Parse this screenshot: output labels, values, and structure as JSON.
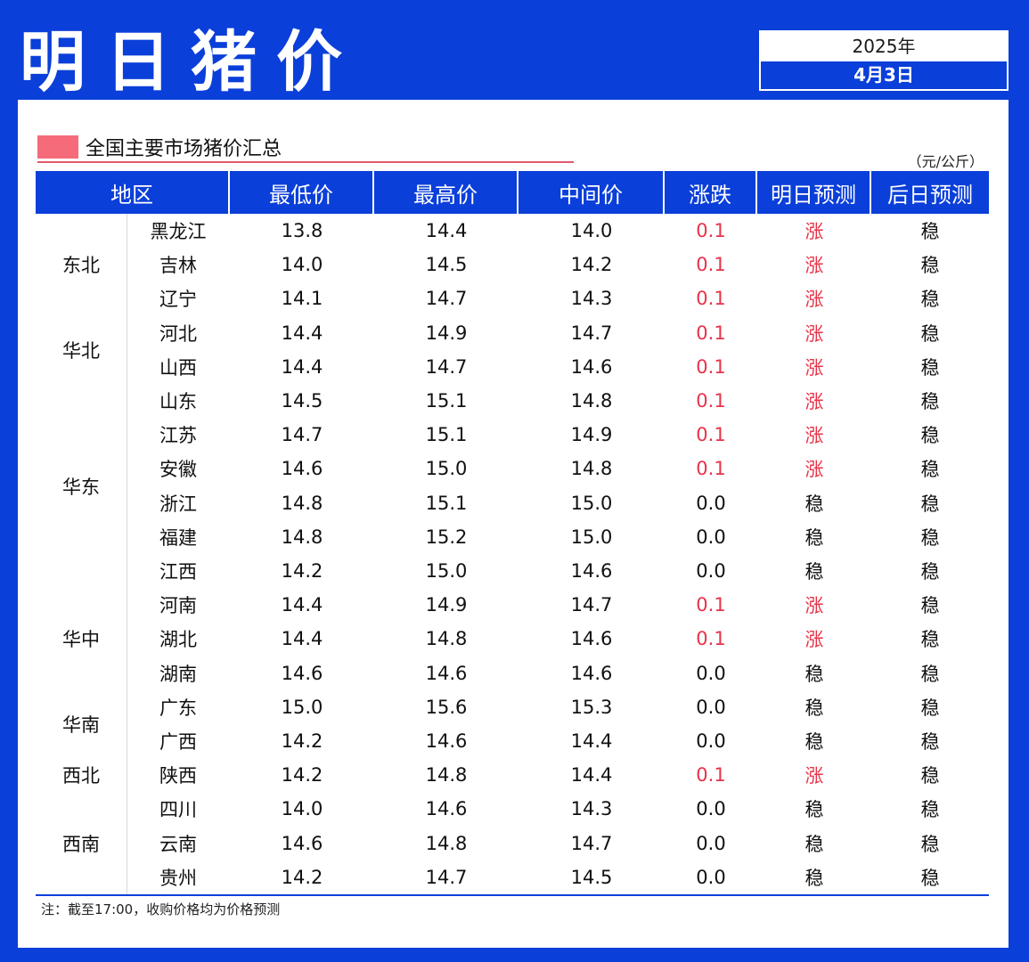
{
  "header": {
    "title": "明日猪价",
    "year": "2025年",
    "date": "4月3日"
  },
  "section": {
    "title": "全国主要市场猪价汇总",
    "unit": "（元/公斤）"
  },
  "colors": {
    "brand_blue": "#0b3fd9",
    "accent_pink": "#f56b7a",
    "up_red": "#e8334a"
  },
  "table": {
    "headers": [
      "地区",
      "最低价",
      "最高价",
      "中间价",
      "涨跌",
      "明日预测",
      "后日预测"
    ],
    "regions": [
      {
        "name": "东北",
        "rows": 3
      },
      {
        "name": "华北",
        "rows": 2
      },
      {
        "name": "华东",
        "rows": 6
      },
      {
        "name": "华中",
        "rows": 3
      },
      {
        "name": "华南",
        "rows": 2
      },
      {
        "name": "西北",
        "rows": 1
      },
      {
        "name": "西南",
        "rows": 3
      }
    ],
    "rows": [
      {
        "province": "黑龙江",
        "low": "13.8",
        "high": "14.4",
        "mid": "14.0",
        "change": "0.1",
        "tomorrow": "涨",
        "after": "稳",
        "up": true
      },
      {
        "province": "吉林",
        "low": "14.0",
        "high": "14.5",
        "mid": "14.2",
        "change": "0.1",
        "tomorrow": "涨",
        "after": "稳",
        "up": true
      },
      {
        "province": "辽宁",
        "low": "14.1",
        "high": "14.7",
        "mid": "14.3",
        "change": "0.1",
        "tomorrow": "涨",
        "after": "稳",
        "up": true
      },
      {
        "province": "河北",
        "low": "14.4",
        "high": "14.9",
        "mid": "14.7",
        "change": "0.1",
        "tomorrow": "涨",
        "after": "稳",
        "up": true
      },
      {
        "province": "山西",
        "low": "14.4",
        "high": "14.7",
        "mid": "14.6",
        "change": "0.1",
        "tomorrow": "涨",
        "after": "稳",
        "up": true
      },
      {
        "province": "山东",
        "low": "14.5",
        "high": "15.1",
        "mid": "14.8",
        "change": "0.1",
        "tomorrow": "涨",
        "after": "稳",
        "up": true
      },
      {
        "province": "江苏",
        "low": "14.7",
        "high": "15.1",
        "mid": "14.9",
        "change": "0.1",
        "tomorrow": "涨",
        "after": "稳",
        "up": true
      },
      {
        "province": "安徽",
        "low": "14.6",
        "high": "15.0",
        "mid": "14.8",
        "change": "0.1",
        "tomorrow": "涨",
        "after": "稳",
        "up": true
      },
      {
        "province": "浙江",
        "low": "14.8",
        "high": "15.1",
        "mid": "15.0",
        "change": "0.0",
        "tomorrow": "稳",
        "after": "稳",
        "up": false
      },
      {
        "province": "福建",
        "low": "14.8",
        "high": "15.2",
        "mid": "15.0",
        "change": "0.0",
        "tomorrow": "稳",
        "after": "稳",
        "up": false
      },
      {
        "province": "江西",
        "low": "14.2",
        "high": "15.0",
        "mid": "14.6",
        "change": "0.0",
        "tomorrow": "稳",
        "after": "稳",
        "up": false
      },
      {
        "province": "河南",
        "low": "14.4",
        "high": "14.9",
        "mid": "14.7",
        "change": "0.1",
        "tomorrow": "涨",
        "after": "稳",
        "up": true
      },
      {
        "province": "湖北",
        "low": "14.4",
        "high": "14.8",
        "mid": "14.6",
        "change": "0.1",
        "tomorrow": "涨",
        "after": "稳",
        "up": true
      },
      {
        "province": "湖南",
        "low": "14.6",
        "high": "14.6",
        "mid": "14.6",
        "change": "0.0",
        "tomorrow": "稳",
        "after": "稳",
        "up": false
      },
      {
        "province": "广东",
        "low": "15.0",
        "high": "15.6",
        "mid": "15.3",
        "change": "0.0",
        "tomorrow": "稳",
        "after": "稳",
        "up": false
      },
      {
        "province": "广西",
        "low": "14.2",
        "high": "14.6",
        "mid": "14.4",
        "change": "0.0",
        "tomorrow": "稳",
        "after": "稳",
        "up": false
      },
      {
        "province": "陕西",
        "low": "14.2",
        "high": "14.8",
        "mid": "14.4",
        "change": "0.1",
        "tomorrow": "涨",
        "after": "稳",
        "up": true
      },
      {
        "province": "四川",
        "low": "14.0",
        "high": "14.6",
        "mid": "14.3",
        "change": "0.0",
        "tomorrow": "稳",
        "after": "稳",
        "up": false
      },
      {
        "province": "云南",
        "low": "14.6",
        "high": "14.8",
        "mid": "14.7",
        "change": "0.0",
        "tomorrow": "稳",
        "after": "稳",
        "up": false
      },
      {
        "province": "贵州",
        "low": "14.2",
        "high": "14.7",
        "mid": "14.5",
        "change": "0.0",
        "tomorrow": "稳",
        "after": "稳",
        "up": false
      }
    ]
  },
  "footer": {
    "note": "注：截至17:00，收购价格均为价格预测"
  }
}
